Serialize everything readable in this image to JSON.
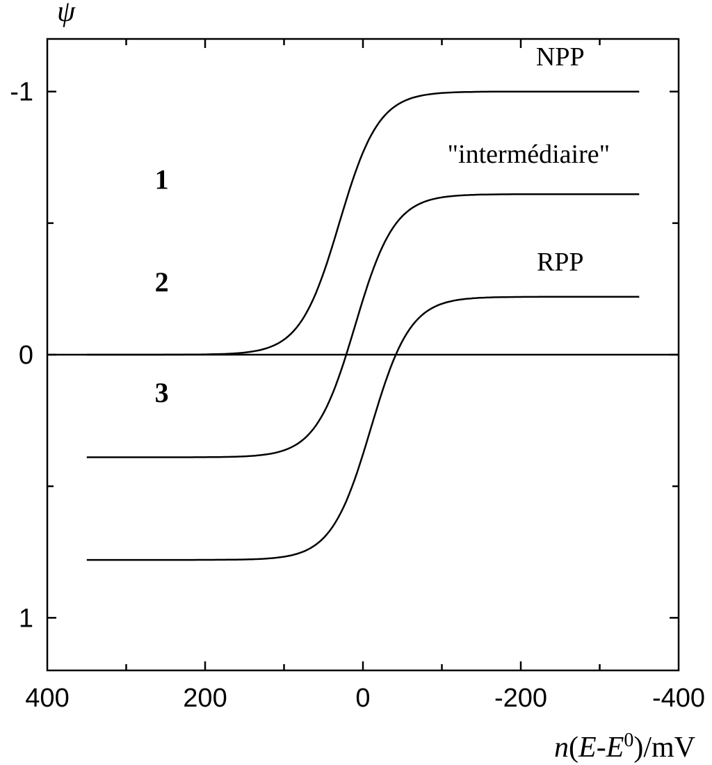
{
  "chart_data": {
    "type": "line",
    "ylabel": "ψ",
    "xlabel": {
      "n": "n",
      "open": "(",
      "E1": "E",
      "dash": "-",
      "E2": "E",
      "sup": "0",
      "close": ")/mV"
    },
    "xlim": [
      400,
      -400
    ],
    "ylim": [
      1.2,
      -1.2
    ],
    "x_ticks": [
      400,
      200,
      0,
      -200,
      -400
    ],
    "x_tick_labels": [
      "400",
      "200",
      "0",
      "-200",
      "-400"
    ],
    "x_minor_ticks": [
      300,
      100,
      -100,
      -300
    ],
    "y_ticks": [
      -1,
      0,
      1
    ],
    "y_tick_labels": [
      "-1",
      "0",
      "1"
    ],
    "y_minor_ticks": [
      -0.5,
      0.5
    ],
    "zero_line": 0,
    "x_range": [
      350,
      -350
    ],
    "series": [
      {
        "label": "1",
        "start": 0.78,
        "end": -0.22,
        "midpoint": -10,
        "width": 25
      },
      {
        "label": "2",
        "start": 0.39,
        "end": -0.61,
        "midpoint": 10,
        "width": 25
      },
      {
        "label": "3",
        "start": 0.0,
        "end": -1.0,
        "midpoint": 30,
        "width": 25
      }
    ],
    "annotations": [
      {
        "text": "NPP",
        "x": -250,
        "y": -1.1
      },
      {
        "text": "\"intermédiaire\"",
        "x": -210,
        "y": -0.73
      },
      {
        "text": "RPP",
        "x": -250,
        "y": -0.32
      }
    ],
    "curve_numbers": [
      {
        "text": "3",
        "x": 255,
        "y": 0.18
      },
      {
        "text": "2",
        "x": 255,
        "y": -0.24
      },
      {
        "text": "1",
        "x": 255,
        "y": -0.63
      }
    ]
  }
}
